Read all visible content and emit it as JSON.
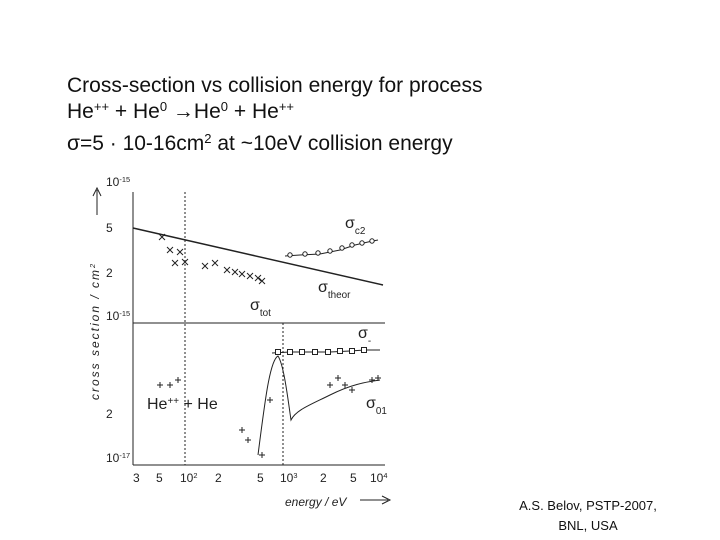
{
  "title": {
    "line1": "Cross-section vs collision energy for process",
    "line2": [
      "He",
      "++",
      " + He",
      "0",
      " →He",
      "0",
      " + He",
      "++"
    ],
    "line3": [
      "σ=5 · 10-16cm",
      "2",
      " at ~10eV collision energy"
    ]
  },
  "figure": {
    "y_label": [
      "cross section / cm",
      "2"
    ],
    "x_label": "energy / eV",
    "y_ticks": [
      [
        "10",
        "-15"
      ],
      "5",
      "2",
      [
        "10",
        "-15"
      ],
      "2",
      [
        "10",
        "-17"
      ]
    ],
    "x_ticks": [
      "3",
      "5",
      [
        "10",
        "2"
      ],
      "2",
      "5",
      [
        "10",
        "3"
      ],
      "2",
      "5",
      [
        "10",
        "4"
      ]
    ],
    "annotations": [
      [
        "σ",
        "c2"
      ],
      [
        "σ",
        "theor"
      ],
      [
        "σ",
        "tot"
      ],
      [
        "σ",
        "-"
      ],
      [
        "σ",
        "01"
      ],
      [
        "He",
        "++",
        " + He"
      ]
    ]
  },
  "credit": [
    "A.S. Belov, PSTP-2007,",
    "BNL, USA"
  ]
}
